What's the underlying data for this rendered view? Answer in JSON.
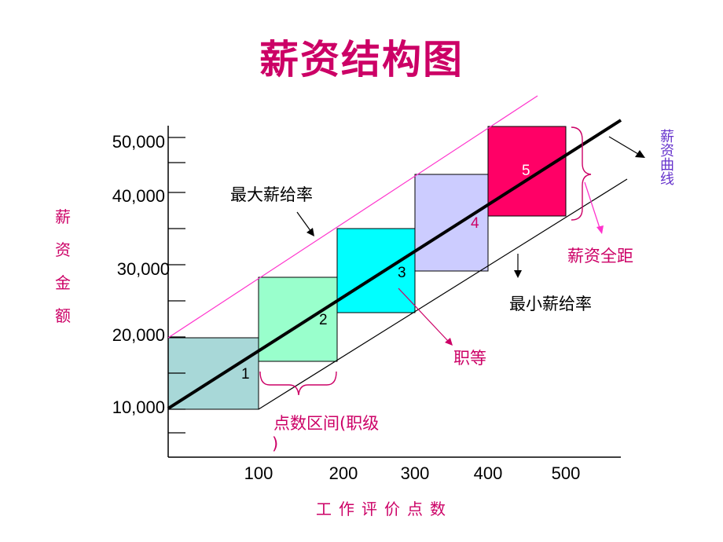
{
  "title": "薪资结构图",
  "y_axis": {
    "title_chars": [
      "薪",
      "资",
      "金",
      "额"
    ],
    "ticks": [
      "10,000",
      "20,000",
      "30,000",
      "40,000",
      "50,000"
    ]
  },
  "x_axis": {
    "title": "工作评价点数",
    "ticks": [
      "100",
      "200",
      "300",
      "400",
      "500"
    ]
  },
  "annotations": {
    "max_rate": "最大薪给率",
    "min_rate": "最小薪给率",
    "salary_range": "薪资全距",
    "grade": "职等",
    "point_range_line1": "点数区间(职级",
    "point_range_line2": ")",
    "salary_curve_chars": [
      "薪",
      "资",
      "曲",
      "线"
    ]
  },
  "grades": [
    {
      "label": "1",
      "fill": "#a8d8d8",
      "label_color": "#000000"
    },
    {
      "label": "2",
      "fill": "#99ffcc",
      "label_color": "#000000"
    },
    {
      "label": "3",
      "fill": "#00ffff",
      "label_color": "#000000"
    },
    {
      "label": "4",
      "fill": "#ccccff",
      "label_color": "#cc0066"
    },
    {
      "label": "5",
      "fill": "#ff0066",
      "label_color": "#ffffff"
    }
  ],
  "colors": {
    "title": "#cc0066",
    "accent": "#cc0066",
    "max_line": "#ff33cc",
    "curve_label": "#6633cc"
  }
}
